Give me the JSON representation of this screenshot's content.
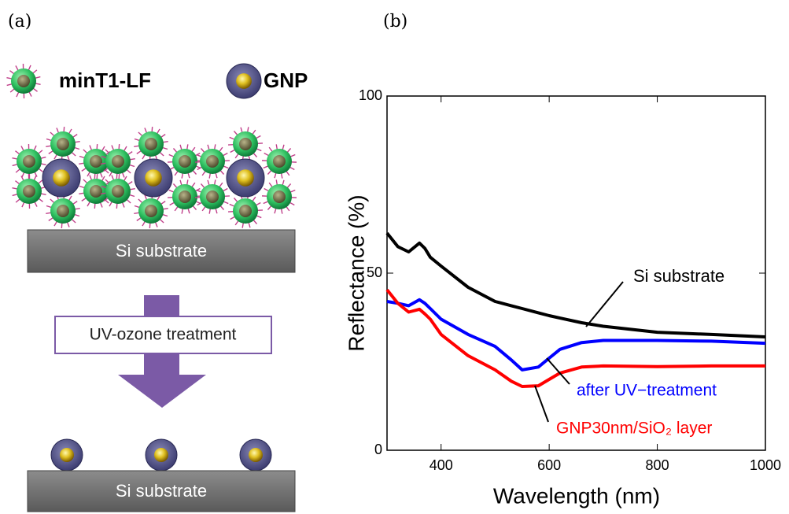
{
  "panel_labels": [
    "(a)",
    "(b)"
  ],
  "panel_a": {
    "legend": [
      "minT1-LF",
      "GNP"
    ],
    "substrate_top": "Si substrate",
    "step": "UV-ozone treatment",
    "substrate_bottom": "Si substrate"
  },
  "chart_data": {
    "type": "line",
    "x_label": "Wavelength (nm)",
    "y_label": "Reflectance (%)",
    "x": [
      300,
      320,
      340,
      360,
      370,
      380,
      400,
      450,
      500,
      530,
      550,
      580,
      600,
      620,
      660,
      700,
      800,
      900,
      1000
    ],
    "series": [
      {
        "name": "Si substrate",
        "color": "#000000",
        "values": [
          61.3,
          57.5,
          56,
          58.5,
          57,
          54.5,
          52,
          46,
          42,
          40.8,
          40,
          38.8,
          38,
          37.3,
          36,
          35,
          33.3,
          32.7,
          32
        ]
      },
      {
        "name": "after UV−treatment",
        "color": "#0000ff",
        "values": [
          42,
          41.5,
          40.8,
          42.5,
          41.5,
          40,
          37,
          32.7,
          29.3,
          25.5,
          22.7,
          23.5,
          26,
          28.5,
          30.4,
          31,
          31,
          30.8,
          30.2
        ]
      },
      {
        "name": "GNP30nm/SiO₂ layer",
        "color": "#ff0000",
        "values": [
          45.3,
          41.5,
          39,
          39.8,
          38.5,
          37,
          32.7,
          26.7,
          22.7,
          19.5,
          18,
          18.2,
          20,
          21.8,
          23.5,
          23.8,
          23.6,
          23.8,
          23.8
        ]
      }
    ],
    "xlim": [
      300,
      1000
    ],
    "xticks": [
      400,
      600,
      800,
      1000
    ],
    "ylim": [
      0,
      100
    ],
    "yticks": [
      0,
      50,
      100
    ],
    "grid": false
  }
}
